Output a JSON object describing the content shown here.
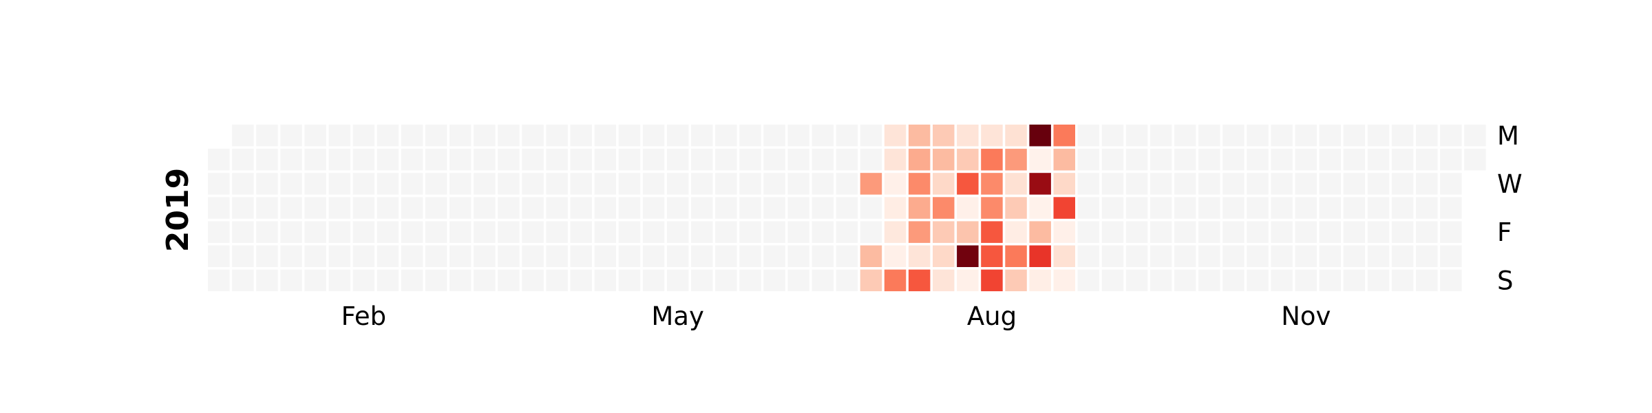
{
  "chart_data": {
    "type": "heatmap",
    "subtype": "calendar",
    "year": "2019",
    "month_labels": [
      {
        "label": "Feb",
        "week": 7
      },
      {
        "label": "May",
        "week": 20
      },
      {
        "label": "Aug",
        "week": 33
      },
      {
        "label": "Nov",
        "week": 46
      }
    ],
    "day_labels": [
      {
        "label": "M",
        "row": 0
      },
      {
        "label": "W",
        "row": 2
      },
      {
        "label": "F",
        "row": 4
      },
      {
        "label": "S",
        "row": 6
      }
    ],
    "colormap": "Reds",
    "empty_color": "#f5f5f5",
    "grid": false,
    "active_weeks": [
      {
        "week": 28,
        "values": [
          null,
          null,
          0.35,
          null,
          null,
          0.25,
          0.2
        ]
      },
      {
        "week": 29,
        "values": [
          0.1,
          0.1,
          0.03,
          0.05,
          0.08,
          0.03,
          0.45
        ]
      },
      {
        "week": 30,
        "values": [
          0.25,
          0.3,
          0.4,
          0.3,
          0.35,
          0.1,
          0.55
        ]
      },
      {
        "week": 31,
        "values": [
          0.2,
          0.25,
          0.15,
          0.4,
          0.2,
          0.15,
          0.1
        ]
      },
      {
        "week": 32,
        "values": [
          0.1,
          0.2,
          0.55,
          0.03,
          0.22,
          0.98,
          0.03
        ]
      },
      {
        "week": 33,
        "values": [
          0.1,
          0.45,
          0.4,
          0.4,
          0.55,
          0.55,
          0.6
        ]
      },
      {
        "week": 34,
        "values": [
          0.12,
          0.35,
          0.12,
          0.2,
          0.05,
          0.45,
          0.2
        ]
      },
      {
        "week": 35,
        "values": [
          1.0,
          0.02,
          0.9,
          0.02,
          0.25,
          0.65,
          0.04
        ]
      },
      {
        "week": 36,
        "values": [
          0.45,
          0.25,
          0.15,
          0.6,
          0.03,
          0.12,
          0.03
        ]
      }
    ]
  }
}
